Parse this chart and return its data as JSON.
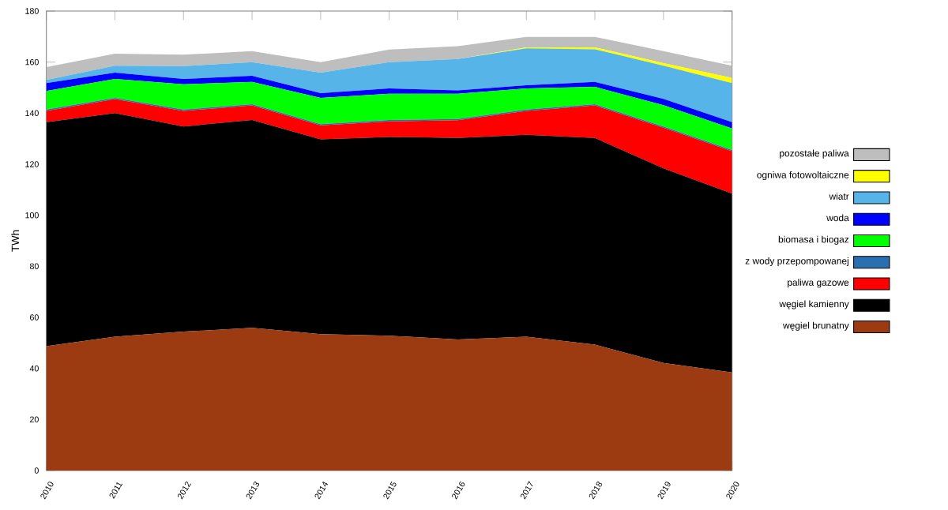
{
  "chart_data": {
    "type": "area",
    "stacked": true,
    "ylabel": "TWh",
    "legend": "right",
    "grid": false,
    "x": [
      2010,
      2011,
      2012,
      2013,
      2014,
      2015,
      2016,
      2017,
      2018,
      2019,
      2020
    ],
    "xlim": [
      2010,
      2020
    ],
    "xticks": [
      2010,
      2011,
      2012,
      2013,
      2014,
      2015,
      2016,
      2017,
      2018,
      2019,
      2020
    ],
    "ylim": [
      0,
      180
    ],
    "yticks": [
      0,
      20,
      40,
      60,
      80,
      100,
      120,
      140,
      160,
      180
    ],
    "series": [
      {
        "name": "węgiel brunatny",
        "color": "#9c3a12",
        "values": [
          48.7,
          52.4,
          54.4,
          55.9,
          53.4,
          52.8,
          51.3,
          52.4,
          49.3,
          42.1,
          38.4
        ]
      },
      {
        "name": "węgiel kamienny",
        "color": "#000000",
        "values": [
          87.8,
          87.6,
          80.4,
          81.4,
          76.3,
          77.9,
          79.0,
          79.1,
          81.0,
          76.3,
          70.1
        ]
      },
      {
        "name": "paliwa gazowe",
        "color": "#ff0000",
        "values": [
          4.4,
          5.5,
          6.1,
          5.7,
          5.5,
          6.1,
          6.9,
          9.4,
          12.7,
          15.9,
          16.6
        ]
      },
      {
        "name": "z wody przepompowanej",
        "color": "#2a6fb0",
        "values": [
          0.5,
          0.5,
          0.5,
          0.5,
          0.5,
          0.5,
          0.5,
          0.5,
          0.5,
          0.5,
          0.5
        ]
      },
      {
        "name": "biomasa i biogaz",
        "color": "#00ff00",
        "values": [
          7.3,
          7.4,
          9.9,
          8.7,
          10.3,
          10.3,
          9.9,
          8.3,
          6.8,
          8.3,
          8.4
        ]
      },
      {
        "name": "woda",
        "color": "#0000ff",
        "values": [
          3.1,
          2.5,
          2.1,
          2.4,
          1.8,
          2.1,
          1.3,
          1.2,
          1.9,
          2.5,
          2.5
        ]
      },
      {
        "name": "wiatr",
        "color": "#56b4e9",
        "values": [
          1.2,
          2.7,
          5.0,
          5.4,
          8.1,
          10.3,
          12.3,
          14.5,
          12.8,
          13.0,
          15.3
        ]
      },
      {
        "name": "ogniwa fotowoltaiczne",
        "color": "#ffff00",
        "values": [
          0,
          0,
          0,
          0,
          0,
          0,
          0,
          0.4,
          0.8,
          1.0,
          2.0
        ]
      },
      {
        "name": "pozostałe paliwa",
        "color": "#bebebe",
        "values": [
          5.0,
          4.7,
          4.5,
          4.3,
          4.1,
          4.9,
          5.0,
          4.1,
          4.1,
          4.7,
          4.8
        ]
      }
    ]
  }
}
